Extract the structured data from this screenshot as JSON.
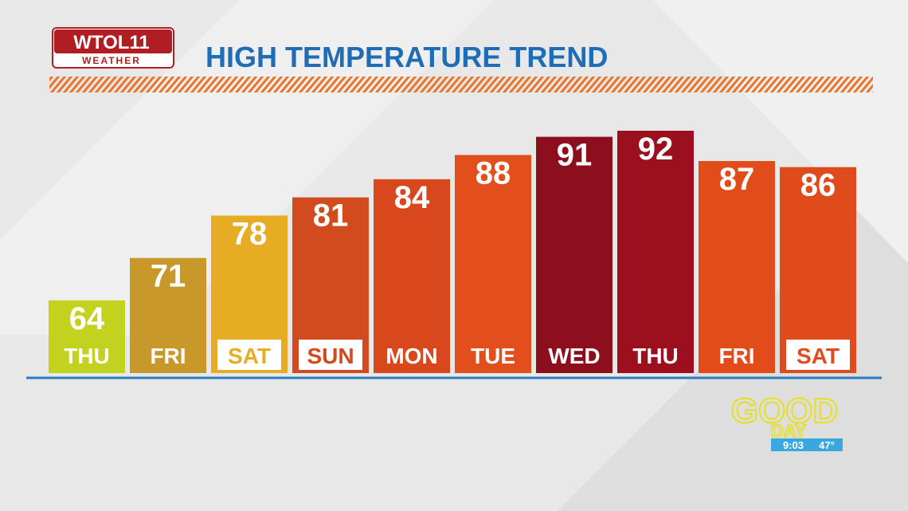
{
  "chart_data": {
    "type": "bar",
    "title": "HIGH TEMPERATURE TREND",
    "categories": [
      "THU",
      "FRI",
      "SAT",
      "SUN",
      "MON",
      "TUE",
      "WED",
      "THU",
      "FRI",
      "SAT"
    ],
    "values": [
      64,
      71,
      78,
      81,
      84,
      88,
      91,
      92,
      87,
      86
    ],
    "colors": [
      "#c3d21e",
      "#c8992a",
      "#e6ac24",
      "#d24b1e",
      "#d9471d",
      "#e24e1c",
      "#8d0f1d",
      "#9b0f1f",
      "#e24c1b",
      "#e04b1b"
    ],
    "label_boxed": [
      false,
      false,
      true,
      true,
      false,
      false,
      false,
      false,
      false,
      true
    ],
    "ylim": [
      52,
      92
    ]
  },
  "branding": {
    "station": "WTOL11",
    "subtitle": "WEATHER",
    "show_top": "GOOD",
    "show_bottom": "DAY",
    "time": "9:03",
    "temperature": "47°"
  }
}
